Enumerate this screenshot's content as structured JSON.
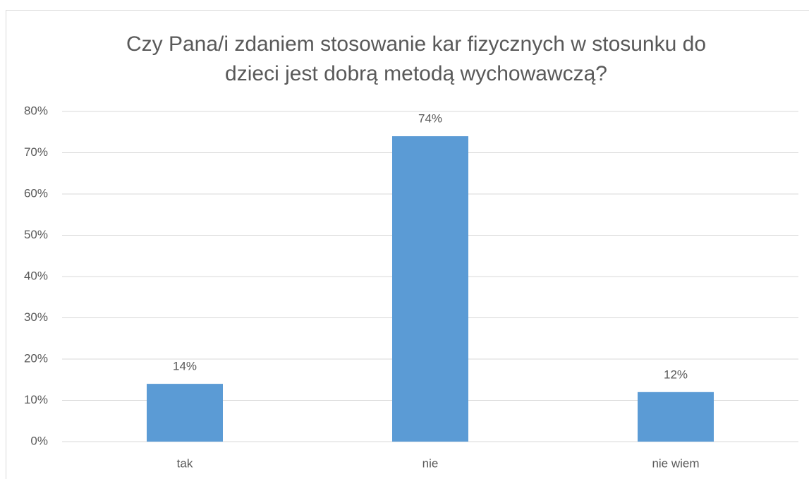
{
  "chart_data": {
    "type": "bar",
    "title": "Czy Pana/i zdaniem stosowanie kar fizycznych w stosunku do dzieci jest dobrą metodą wychowawczą?",
    "categories": [
      "tak",
      "nie",
      "nie wiem"
    ],
    "values": [
      14,
      74,
      12
    ],
    "value_labels": [
      "14%",
      "74%",
      "12%"
    ],
    "color": "#5b9bd5",
    "ylim": [
      0,
      80
    ],
    "yticks": [
      {
        "value": 0,
        "label": "0%"
      },
      {
        "value": 10,
        "label": "10%"
      },
      {
        "value": 20,
        "label": "20%"
      },
      {
        "value": 30,
        "label": "30%"
      },
      {
        "value": 40,
        "label": "40%"
      },
      {
        "value": 50,
        "label": "50%"
      },
      {
        "value": 60,
        "label": "60%"
      },
      {
        "value": 70,
        "label": "70%"
      },
      {
        "value": 80,
        "label": "80%"
      }
    ],
    "grid": true
  }
}
